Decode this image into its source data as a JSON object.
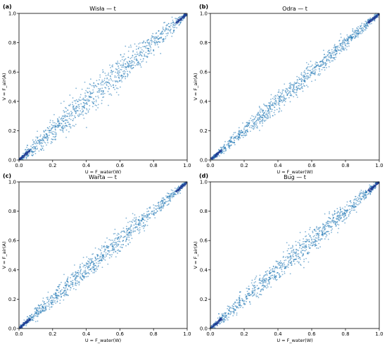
{
  "figure": {
    "panels": [
      {
        "letter": "(a)",
        "title": "Wisła — t"
      },
      {
        "letter": "(b)",
        "title": "Odra — t"
      },
      {
        "letter": "(c)",
        "title": "Warta — t"
      },
      {
        "letter": "(d)",
        "title": "Bug — t"
      }
    ]
  },
  "chart_data": [
    {
      "type": "scatter",
      "title": "Wisła — t",
      "xlabel": "U = F_water(W)",
      "ylabel": "V = F_air(A)",
      "xlim": [
        0,
        1
      ],
      "ylim": [
        0,
        1
      ],
      "xticks": [
        "0.0",
        "0.2",
        "0.4",
        "0.6",
        "0.8",
        "1.0"
      ],
      "yticks": [
        "0.0",
        "0.2",
        "0.4",
        "0.6",
        "0.8",
        "1.0"
      ],
      "grid": false,
      "marker_color": "#1f77b4",
      "n_points_approx": 1000,
      "spread_sd": 0.055,
      "lower_tail_cluster": true,
      "upper_tail_cluster": true,
      "x": [
        0.02,
        0.05,
        0.08,
        0.11,
        0.14,
        0.17,
        0.2,
        0.23,
        0.26,
        0.29,
        0.32,
        0.35,
        0.38,
        0.41,
        0.44,
        0.47,
        0.5,
        0.53,
        0.56,
        0.59,
        0.62,
        0.65,
        0.68,
        0.71,
        0.74,
        0.77,
        0.8,
        0.83,
        0.86,
        0.89,
        0.92,
        0.95,
        0.98
      ],
      "y": [
        0.03,
        0.1,
        0.03,
        0.15,
        0.08,
        0.22,
        0.14,
        0.28,
        0.2,
        0.34,
        0.27,
        0.4,
        0.33,
        0.46,
        0.39,
        0.52,
        0.45,
        0.58,
        0.51,
        0.64,
        0.57,
        0.7,
        0.63,
        0.76,
        0.69,
        0.82,
        0.75,
        0.88,
        0.81,
        0.93,
        0.88,
        0.97,
        0.99
      ]
    },
    {
      "type": "scatter",
      "title": "Odra — t",
      "xlabel": "U = F_water(W)",
      "ylabel": "V = F_air(A)",
      "xlim": [
        0,
        1
      ],
      "ylim": [
        0,
        1
      ],
      "xticks": [
        "0.0",
        "0.2",
        "0.4",
        "0.6",
        "0.8",
        "1.0"
      ],
      "yticks": [
        "0.0",
        "0.2",
        "0.4",
        "0.6",
        "0.8",
        "1.0"
      ],
      "grid": false,
      "marker_color": "#1f77b4",
      "n_points_approx": 1000,
      "spread_sd": 0.035,
      "lower_tail_cluster": true,
      "upper_tail_cluster": true,
      "x": [
        0.02,
        0.05,
        0.08,
        0.11,
        0.14,
        0.17,
        0.2,
        0.23,
        0.26,
        0.29,
        0.32,
        0.35,
        0.38,
        0.41,
        0.44,
        0.47,
        0.5,
        0.53,
        0.56,
        0.59,
        0.62,
        0.65,
        0.68,
        0.71,
        0.74,
        0.77,
        0.8,
        0.83,
        0.86,
        0.89,
        0.92,
        0.95,
        0.98
      ],
      "y": [
        0.02,
        0.07,
        0.06,
        0.13,
        0.12,
        0.19,
        0.18,
        0.25,
        0.24,
        0.31,
        0.3,
        0.37,
        0.36,
        0.43,
        0.42,
        0.49,
        0.48,
        0.55,
        0.54,
        0.61,
        0.6,
        0.67,
        0.66,
        0.73,
        0.72,
        0.79,
        0.78,
        0.85,
        0.84,
        0.91,
        0.9,
        0.96,
        0.99
      ]
    },
    {
      "type": "scatter",
      "title": "Warta — t",
      "xlabel": "U = F_water(W)",
      "ylabel": "V = F_air(A)",
      "xlim": [
        0,
        1
      ],
      "ylim": [
        0,
        1
      ],
      "xticks": [
        "0.0",
        "0.2",
        "0.4",
        "0.6",
        "0.8",
        "1.0"
      ],
      "yticks": [
        "0.0",
        "0.2",
        "0.4",
        "0.6",
        "0.8",
        "1.0"
      ],
      "grid": false,
      "marker_color": "#1f77b4",
      "n_points_approx": 1000,
      "spread_sd": 0.04,
      "lower_tail_cluster": true,
      "upper_tail_cluster": true,
      "x": [
        0.02,
        0.05,
        0.08,
        0.11,
        0.14,
        0.17,
        0.2,
        0.23,
        0.26,
        0.29,
        0.32,
        0.35,
        0.38,
        0.41,
        0.44,
        0.47,
        0.5,
        0.53,
        0.56,
        0.59,
        0.62,
        0.65,
        0.68,
        0.71,
        0.74,
        0.77,
        0.8,
        0.83,
        0.86,
        0.89,
        0.92,
        0.95,
        0.98
      ],
      "y": [
        0.02,
        0.08,
        0.06,
        0.14,
        0.12,
        0.2,
        0.18,
        0.26,
        0.24,
        0.32,
        0.3,
        0.38,
        0.36,
        0.44,
        0.42,
        0.5,
        0.48,
        0.56,
        0.54,
        0.62,
        0.6,
        0.68,
        0.66,
        0.74,
        0.72,
        0.8,
        0.78,
        0.86,
        0.84,
        0.92,
        0.9,
        0.97,
        0.99
      ]
    },
    {
      "type": "scatter",
      "title": "Bug — t",
      "xlabel": "U = F_water(W)",
      "ylabel": "V = F_air(A)",
      "xlim": [
        0,
        1
      ],
      "ylim": [
        0,
        1
      ],
      "xticks": [
        "0.0",
        "0.2",
        "0.4",
        "0.6",
        "0.8",
        "1.0"
      ],
      "yticks": [
        "0.0",
        "0.2",
        "0.4",
        "0.6",
        "0.8",
        "1.0"
      ],
      "grid": false,
      "marker_color": "#1f77b4",
      "n_points_approx": 1000,
      "spread_sd": 0.045,
      "lower_tail_cluster": true,
      "upper_tail_cluster": true,
      "x": [
        0.02,
        0.05,
        0.08,
        0.11,
        0.14,
        0.17,
        0.2,
        0.23,
        0.26,
        0.29,
        0.32,
        0.35,
        0.38,
        0.41,
        0.44,
        0.47,
        0.5,
        0.53,
        0.56,
        0.59,
        0.62,
        0.65,
        0.68,
        0.71,
        0.74,
        0.77,
        0.8,
        0.83,
        0.86,
        0.89,
        0.92,
        0.95,
        0.98
      ],
      "y": [
        0.03,
        0.1,
        0.05,
        0.15,
        0.11,
        0.21,
        0.17,
        0.27,
        0.23,
        0.33,
        0.29,
        0.39,
        0.35,
        0.45,
        0.41,
        0.51,
        0.47,
        0.57,
        0.53,
        0.63,
        0.59,
        0.69,
        0.65,
        0.75,
        0.71,
        0.81,
        0.77,
        0.87,
        0.83,
        0.92,
        0.89,
        0.97,
        0.99
      ]
    }
  ]
}
